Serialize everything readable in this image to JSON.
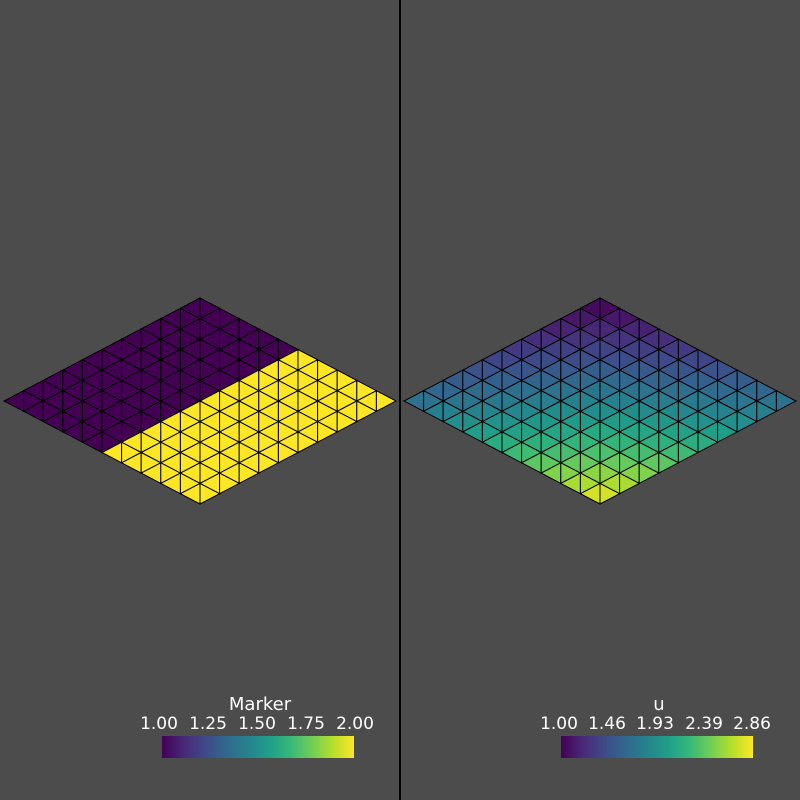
{
  "views": [
    {
      "id": "left",
      "field": "marker",
      "colorbar": {
        "title": "Marker",
        "ticks": [
          "1.00",
          "1.25",
          "1.50",
          "1.75",
          "2.00"
        ],
        "range": [
          1.0,
          2.0
        ]
      }
    },
    {
      "id": "right",
      "field": "u",
      "colorbar": {
        "title": "u",
        "ticks": [
          "1.00",
          "1.46",
          "1.93",
          "2.39",
          "2.86"
        ],
        "range": [
          1.0,
          2.86
        ]
      }
    }
  ],
  "colormap": "viridis",
  "background_color": "#4c4c4c",
  "mesh_edge_color": "#000000"
}
